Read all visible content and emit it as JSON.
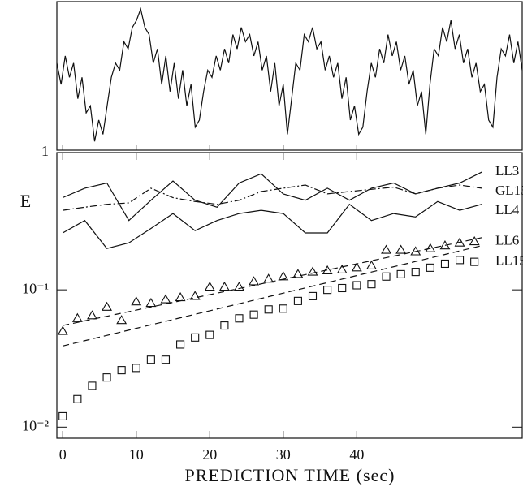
{
  "chart_data": [
    {
      "type": "line",
      "values": [
        0.6,
        0.45,
        0.65,
        0.5,
        0.6,
        0.35,
        0.5,
        0.25,
        0.3,
        0.05,
        0.2,
        0.1,
        0.3,
        0.5,
        0.6,
        0.55,
        0.75,
        0.7,
        0.85,
        0.9,
        0.98,
        0.85,
        0.8,
        0.6,
        0.7,
        0.45,
        0.65,
        0.4,
        0.6,
        0.35,
        0.55,
        0.3,
        0.45,
        0.15,
        0.2,
        0.4,
        0.55,
        0.5,
        0.65,
        0.55,
        0.7,
        0.6,
        0.8,
        0.7,
        0.85,
        0.75,
        0.8,
        0.65,
        0.75,
        0.55,
        0.65,
        0.4,
        0.6,
        0.3,
        0.45,
        0.1,
        0.35,
        0.6,
        0.55,
        0.8,
        0.75,
        0.85,
        0.7,
        0.75,
        0.55,
        0.65,
        0.5,
        0.6,
        0.35,
        0.5,
        0.2,
        0.3,
        0.1,
        0.15,
        0.4,
        0.6,
        0.5,
        0.7,
        0.6,
        0.8,
        0.65,
        0.75,
        0.55,
        0.65,
        0.45,
        0.55,
        0.3,
        0.4,
        0.1,
        0.45,
        0.7,
        0.65,
        0.85,
        0.75,
        0.9,
        0.7,
        0.8,
        0.6,
        0.7,
        0.5,
        0.6,
        0.4,
        0.45,
        0.2,
        0.15,
        0.5,
        0.7,
        0.65,
        0.8,
        0.6,
        0.75,
        0.55
      ],
      "ylim": [
        0,
        1.02
      ]
    },
    {
      "type": "line",
      "log_y": true,
      "xlabel": "PREDICTION TIME (sec)",
      "ylabel": "E",
      "xlim": [
        -0.8,
        62.5
      ],
      "ylim": [
        0.0083,
        1
      ],
      "xticks": [
        0,
        10,
        20,
        30,
        40
      ],
      "yticks": [
        1,
        {
          "value": 0.1,
          "label": "10⁻¹"
        },
        {
          "value": 0.01,
          "label": "10⁻²"
        }
      ],
      "series": [
        {
          "name": "LL3",
          "style": "solid",
          "color": "#111",
          "x": [
            0,
            3,
            6,
            9,
            12,
            15,
            18,
            21,
            24,
            27,
            30,
            33,
            36,
            39,
            42,
            45,
            48,
            51,
            54,
            57
          ],
          "values": [
            0.47,
            0.55,
            0.6,
            0.32,
            0.45,
            0.62,
            0.45,
            0.4,
            0.6,
            0.7,
            0.5,
            0.45,
            0.55,
            0.45,
            0.55,
            0.6,
            0.5,
            0.55,
            0.6,
            0.72
          ]
        },
        {
          "name": "GL15",
          "style": "dashdot",
          "color": "#111",
          "x": [
            0,
            3,
            6,
            9,
            12,
            15,
            18,
            21,
            24,
            27,
            30,
            33,
            36,
            39,
            42,
            45,
            48,
            51,
            54,
            57
          ],
          "values": [
            0.38,
            0.4,
            0.42,
            0.43,
            0.55,
            0.47,
            0.44,
            0.42,
            0.45,
            0.52,
            0.55,
            0.58,
            0.5,
            0.52,
            0.54,
            0.56,
            0.5,
            0.55,
            0.58,
            0.55
          ]
        },
        {
          "name": "LL4",
          "style": "solid",
          "color": "#111",
          "x": [
            0,
            3,
            6,
            9,
            12,
            15,
            18,
            21,
            24,
            27,
            30,
            33,
            36,
            39,
            42,
            45,
            48,
            51,
            54,
            57
          ],
          "values": [
            0.26,
            0.32,
            0.2,
            0.22,
            0.28,
            0.36,
            0.27,
            0.32,
            0.36,
            0.38,
            0.36,
            0.26,
            0.26,
            0.42,
            0.32,
            0.36,
            0.34,
            0.44,
            0.38,
            0.42
          ]
        },
        {
          "name": "LL6",
          "style": "triangle",
          "color": "#111",
          "x": [
            0,
            2,
            4,
            6,
            8,
            10,
            12,
            14,
            16,
            18,
            20,
            22,
            24,
            26,
            28,
            30,
            32,
            34,
            36,
            38,
            40,
            42,
            44,
            46,
            48,
            50,
            52,
            54,
            56
          ],
          "values": [
            0.05,
            0.062,
            0.065,
            0.075,
            0.06,
            0.082,
            0.08,
            0.085,
            0.088,
            0.09,
            0.105,
            0.105,
            0.105,
            0.115,
            0.12,
            0.125,
            0.13,
            0.135,
            0.138,
            0.14,
            0.145,
            0.15,
            0.195,
            0.195,
            0.19,
            0.2,
            0.21,
            0.22,
            0.225
          ]
        },
        {
          "name": "LL15",
          "style": "square",
          "color": "#111",
          "x": [
            0,
            2,
            4,
            6,
            8,
            10,
            12,
            14,
            16,
            18,
            20,
            22,
            24,
            26,
            28,
            30,
            32,
            34,
            36,
            38,
            40,
            42,
            44,
            46,
            48,
            50,
            52,
            54,
            56
          ],
          "values": [
            0.012,
            0.016,
            0.02,
            0.023,
            0.026,
            0.027,
            0.031,
            0.031,
            0.04,
            0.045,
            0.047,
            0.055,
            0.062,
            0.066,
            0.072,
            0.073,
            0.083,
            0.09,
            0.1,
            0.103,
            0.108,
            0.11,
            0.125,
            0.13,
            0.135,
            0.145,
            0.155,
            0.165,
            0.16
          ]
        },
        {
          "style": "dashed",
          "color": "#111",
          "x": [
            0,
            57
          ],
          "values": [
            0.055,
            0.24
          ]
        },
        {
          "style": "dashed",
          "color": "#111",
          "x": [
            0,
            57
          ],
          "values": [
            0.039,
            0.21
          ]
        }
      ]
    }
  ]
}
